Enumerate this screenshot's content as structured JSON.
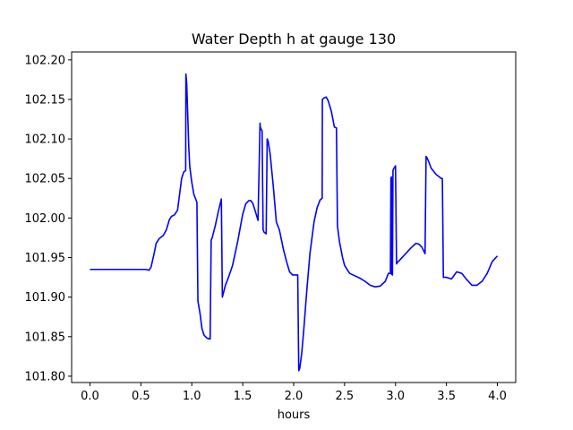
{
  "chart_data": {
    "type": "line",
    "title": "Water Depth h at gauge 130",
    "xlabel": "hours",
    "ylabel": "",
    "xlim": [
      -0.18,
      4.18
    ],
    "ylim": [
      101.792,
      102.21
    ],
    "xticks": [
      0.0,
      0.5,
      1.0,
      1.5,
      2.0,
      2.5,
      3.0,
      3.5,
      4.0
    ],
    "xtick_labels": [
      "0.0",
      "0.5",
      "1.0",
      "1.5",
      "2.0",
      "2.5",
      "3.0",
      "3.5",
      "4.0"
    ],
    "yticks": [
      101.8,
      101.85,
      101.9,
      101.95,
      102.0,
      102.05,
      102.1,
      102.15,
      102.2
    ],
    "ytick_labels": [
      "101.80",
      "101.85",
      "101.90",
      "101.95",
      "102.00",
      "102.05",
      "102.10",
      "102.15",
      "102.20"
    ],
    "grid": false,
    "line_color": "#0000ff",
    "series": [
      {
        "x": [
          0.0,
          0.2,
          0.4,
          0.55,
          0.58,
          0.6,
          0.63,
          0.65,
          0.68,
          0.72,
          0.75,
          0.78,
          0.8,
          0.83,
          0.86,
          0.88,
          0.9,
          0.92,
          0.94,
          0.942,
          0.95,
          0.96,
          0.97,
          0.98,
          1.0,
          1.02,
          1.05,
          1.06,
          1.08,
          1.1,
          1.12,
          1.15,
          1.18,
          1.19,
          1.2,
          1.23,
          1.26,
          1.29,
          1.3,
          1.33,
          1.36,
          1.4,
          1.45,
          1.5,
          1.53,
          1.56,
          1.58,
          1.6,
          1.62,
          1.65,
          1.67,
          1.672,
          1.69,
          1.7,
          1.71,
          1.73,
          1.74,
          1.75,
          1.77,
          1.8,
          1.83,
          1.86,
          1.9,
          1.93,
          1.96,
          1.99,
          2.02,
          2.03,
          2.04,
          2.05,
          2.06,
          2.08,
          2.1,
          2.13,
          2.16,
          2.2,
          2.23,
          2.26,
          2.28,
          2.282,
          2.3,
          2.32,
          2.34,
          2.37,
          2.4,
          2.42,
          2.43,
          2.45,
          2.48,
          2.5,
          2.55,
          2.6,
          2.65,
          2.7,
          2.75,
          2.8,
          2.85,
          2.9,
          2.93,
          2.95,
          2.955,
          2.96,
          2.962,
          2.97,
          2.975,
          2.98,
          3.0,
          3.01,
          3.02,
          3.05,
          3.1,
          3.15,
          3.2,
          3.23,
          3.26,
          3.29,
          3.3,
          3.31,
          3.33,
          3.35,
          3.4,
          3.45,
          3.46,
          3.47,
          3.5,
          3.55,
          3.6,
          3.65,
          3.7,
          3.75,
          3.8,
          3.85,
          3.9,
          3.95,
          4.0
        ],
        "y": [
          101.935,
          101.935,
          101.935,
          101.935,
          101.934,
          101.938,
          101.955,
          101.968,
          101.974,
          101.978,
          101.985,
          101.998,
          102.002,
          102.004,
          102.01,
          102.03,
          102.05,
          102.058,
          102.06,
          102.182,
          102.17,
          102.13,
          102.09,
          102.065,
          102.045,
          102.03,
          102.02,
          101.895,
          101.88,
          101.86,
          101.852,
          101.848,
          101.847,
          101.972,
          101.975,
          101.99,
          102.008,
          102.024,
          101.9,
          101.915,
          101.925,
          101.94,
          101.97,
          102.005,
          102.018,
          102.022,
          102.022,
          102.018,
          102.01,
          101.997,
          102.12,
          102.115,
          102.11,
          101.985,
          101.982,
          101.98,
          102.1,
          102.097,
          102.08,
          102.04,
          101.995,
          101.985,
          101.96,
          101.945,
          101.932,
          101.928,
          101.928,
          101.928,
          101.928,
          101.807,
          101.81,
          101.83,
          101.86,
          101.91,
          101.955,
          101.995,
          102.013,
          102.023,
          102.025,
          102.15,
          102.152,
          102.153,
          102.148,
          102.135,
          102.115,
          102.114,
          101.99,
          101.97,
          101.95,
          101.94,
          101.93,
          101.927,
          101.924,
          101.92,
          101.915,
          101.913,
          101.914,
          101.92,
          101.93,
          101.93,
          102.05,
          102.052,
          101.929,
          101.928,
          102.06,
          102.062,
          102.066,
          101.942,
          101.944,
          101.948,
          101.955,
          101.962,
          101.968,
          101.967,
          101.963,
          101.955,
          102.078,
          102.076,
          102.07,
          102.063,
          102.055,
          102.05,
          102.05,
          101.925,
          101.925,
          101.923,
          101.932,
          101.93,
          101.922,
          101.915,
          101.915,
          101.92,
          101.93,
          101.945,
          101.952
        ]
      }
    ]
  }
}
